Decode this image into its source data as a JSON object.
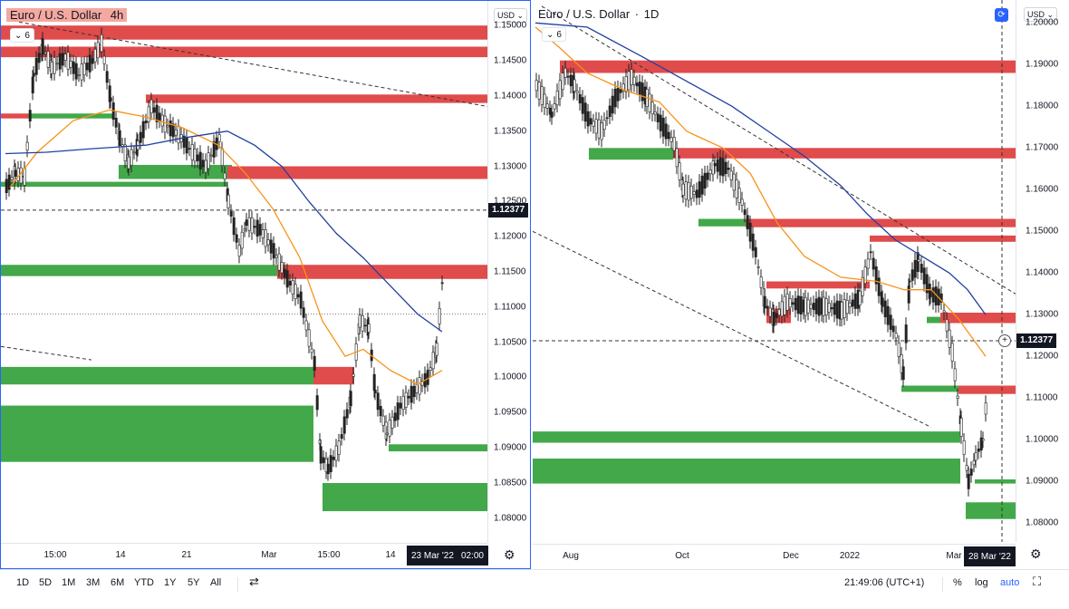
{
  "left_chart": {
    "symbol": "Euro / U.S. Dollar",
    "interval": "4h",
    "indicator_count": "6",
    "currency": "USD",
    "current_price": "1.12377",
    "price_ticks": [
      "1.15000",
      "1.14500",
      "1.14000",
      "1.13500",
      "1.13000",
      "1.12500",
      "1.12000",
      "1.11500",
      "1.11000",
      "1.10500",
      "1.10000",
      "1.09500",
      "1.09000",
      "1.08500",
      "1.08000"
    ],
    "time_ticks": [
      "15:00",
      "14",
      "21",
      "Mar",
      "15:00",
      "14"
    ],
    "cursor_date": "23 Mar '22",
    "cursor_time": "02:00",
    "price_range": [
      1.0765,
      1.1535
    ],
    "colors": {
      "supply": "#e04b4b",
      "demand": "#43a84a",
      "ema_fast": "#f7931a",
      "ema_slow": "#2040a0",
      "border": "#2962ff"
    }
  },
  "right_chart": {
    "symbol": "Euro / U.S. Dollar",
    "interval": "1D",
    "indicator_count": "6",
    "currency": "USD",
    "current_price": "1.12377",
    "price_ticks": [
      "1.20000",
      "1.19000",
      "1.18000",
      "1.17000",
      "1.16000",
      "1.15000",
      "1.14000",
      "1.13000",
      "1.12000",
      "1.11000",
      "1.10000",
      "1.09000",
      "1.08000"
    ],
    "time_ticks": [
      "Aug",
      "Oct",
      "Dec",
      "2022",
      "Mar"
    ],
    "cursor_date": "28 Mar '22",
    "price_range": [
      1.0755,
      1.2055
    ]
  },
  "bottom_bar": {
    "timeframes": [
      "1D",
      "5D",
      "1M",
      "3M",
      "6M",
      "YTD",
      "1Y",
      "5Y",
      "All"
    ],
    "clock": "21:49:06 (UTC+1)",
    "percent": "%",
    "log": "log",
    "auto": "auto"
  }
}
